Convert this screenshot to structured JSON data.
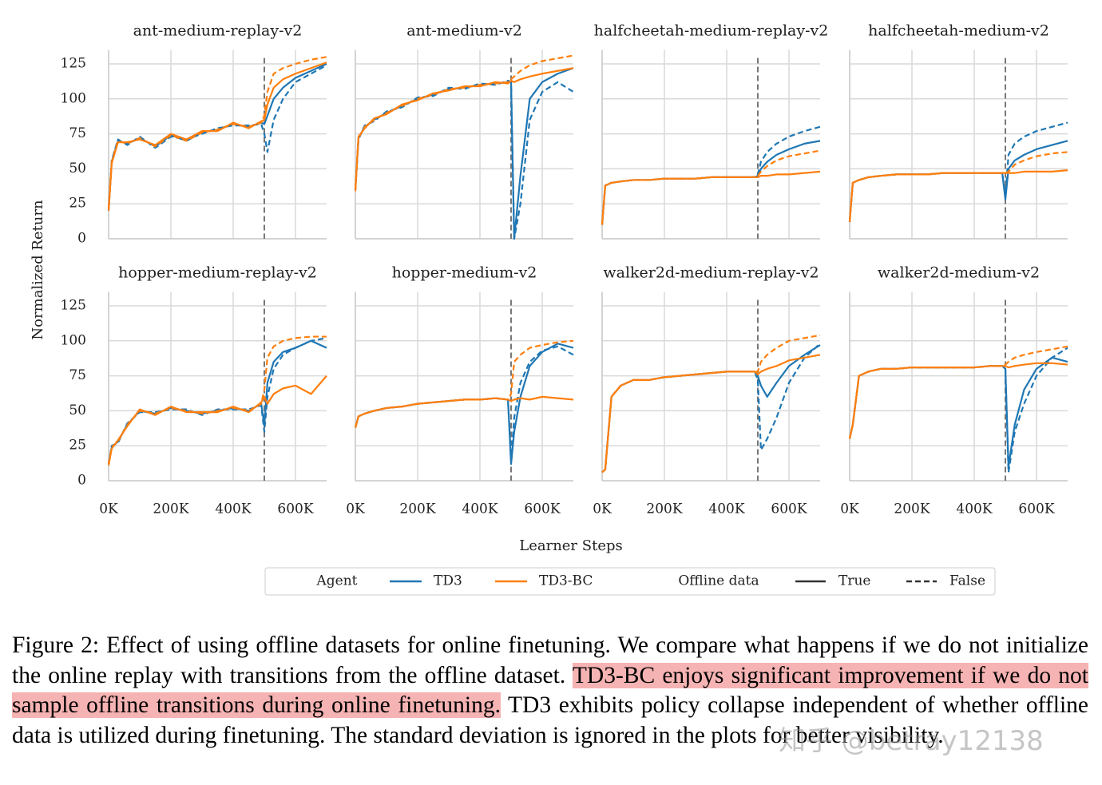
{
  "axes": {
    "xlim": [
      0,
      700000
    ],
    "xticks": [
      {
        "value": 0,
        "label": "0K"
      },
      {
        "value": 200000,
        "label": "200K"
      },
      {
        "value": 400000,
        "label": "400K"
      },
      {
        "value": 600000,
        "label": "600K"
      }
    ],
    "ylim": [
      0,
      135
    ],
    "yticks": [
      0,
      25,
      50,
      75,
      100,
      125
    ],
    "grid": true,
    "switch_step": 500000,
    "xlabel": "Learner Steps",
    "ylabel": "Normalized Return"
  },
  "legend": {
    "agent_title": "Agent",
    "agents": [
      {
        "name": "TD3",
        "color": "#1f77b4"
      },
      {
        "name": "TD3-BC",
        "color": "#ff7f0e"
      }
    ],
    "offline_title": "Offline data",
    "styles": [
      {
        "name": "True",
        "dash": "solid"
      },
      {
        "name": "False",
        "dash": "dashed"
      }
    ]
  },
  "chart_data": [
    {
      "type": "line",
      "title": "ant-medium-replay-v2",
      "x": [
        0,
        10000,
        30000,
        60000,
        100000,
        150000,
        200000,
        250000,
        300000,
        350000,
        400000,
        450000,
        490000,
        500000,
        510000,
        530000,
        560000,
        600000,
        650000,
        700000
      ],
      "series": [
        {
          "agent": "TD3",
          "offline_data": "True",
          "values": [
            20,
            55,
            70,
            68,
            72,
            66,
            74,
            70,
            76,
            78,
            82,
            80,
            83,
            82,
            88,
            100,
            108,
            115,
            120,
            125
          ]
        },
        {
          "agent": "TD3",
          "offline_data": "False",
          "values": [
            21,
            56,
            71,
            67,
            73,
            65,
            73,
            71,
            75,
            79,
            81,
            81,
            82,
            75,
            62,
            85,
            100,
            112,
            118,
            124
          ]
        },
        {
          "agent": "TD3-BC",
          "offline_data": "True",
          "values": [
            20,
            54,
            69,
            69,
            71,
            67,
            75,
            71,
            77,
            77,
            83,
            79,
            84,
            85,
            96,
            108,
            114,
            118,
            122,
            126
          ]
        },
        {
          "agent": "TD3-BC",
          "offline_data": "False",
          "values": [
            22,
            55,
            70,
            68,
            72,
            66,
            74,
            70,
            76,
            78,
            82,
            80,
            83,
            88,
            105,
            118,
            122,
            125,
            128,
            130
          ]
        }
      ]
    },
    {
      "type": "line",
      "title": "ant-medium-v2",
      "x": [
        0,
        10000,
        30000,
        60000,
        100000,
        150000,
        200000,
        250000,
        300000,
        350000,
        400000,
        450000,
        490000,
        500000,
        510000,
        530000,
        560000,
        600000,
        650000,
        700000
      ],
      "series": [
        {
          "agent": "TD3",
          "offline_data": "True",
          "values": [
            35,
            72,
            80,
            85,
            90,
            95,
            100,
            103,
            107,
            108,
            110,
            111,
            112,
            112,
            0,
            45,
            100,
            112,
            118,
            122
          ]
        },
        {
          "agent": "TD3",
          "offline_data": "False",
          "values": [
            35,
            71,
            81,
            84,
            91,
            94,
            101,
            102,
            108,
            107,
            111,
            110,
            113,
            112,
            0,
            25,
            85,
            105,
            112,
            105
          ]
        },
        {
          "agent": "TD3-BC",
          "offline_data": "True",
          "values": [
            34,
            73,
            79,
            86,
            89,
            96,
            99,
            104,
            106,
            109,
            109,
            112,
            111,
            113,
            112,
            114,
            116,
            118,
            120,
            122
          ]
        },
        {
          "agent": "TD3-BC",
          "offline_data": "False",
          "values": [
            36,
            72,
            80,
            85,
            90,
            95,
            100,
            103,
            107,
            108,
            110,
            111,
            112,
            114,
            116,
            120,
            124,
            127,
            129,
            131
          ]
        }
      ]
    },
    {
      "type": "line",
      "title": "halfcheetah-medium-replay-v2",
      "x": [
        0,
        10000,
        30000,
        60000,
        100000,
        150000,
        200000,
        250000,
        300000,
        350000,
        400000,
        450000,
        490000,
        500000,
        510000,
        530000,
        560000,
        600000,
        650000,
        700000
      ],
      "series": [
        {
          "agent": "TD3",
          "offline_data": "True",
          "values": [
            10,
            38,
            40,
            41,
            42,
            42,
            43,
            43,
            43,
            44,
            44,
            44,
            44,
            45,
            50,
            55,
            60,
            64,
            68,
            70
          ]
        },
        {
          "agent": "TD3",
          "offline_data": "False",
          "values": [
            10,
            38,
            40,
            41,
            42,
            42,
            43,
            43,
            43,
            44,
            44,
            44,
            44,
            46,
            55,
            62,
            68,
            73,
            77,
            80
          ]
        },
        {
          "agent": "TD3-BC",
          "offline_data": "True",
          "values": [
            10,
            38,
            40,
            41,
            42,
            42,
            43,
            43,
            43,
            44,
            44,
            44,
            44,
            44,
            45,
            45,
            46,
            46,
            47,
            48
          ]
        },
        {
          "agent": "TD3-BC",
          "offline_data": "False",
          "values": [
            10,
            38,
            40,
            41,
            42,
            42,
            43,
            43,
            43,
            44,
            44,
            44,
            44,
            45,
            48,
            52,
            56,
            59,
            61,
            63
          ]
        }
      ]
    },
    {
      "type": "line",
      "title": "halfcheetah-medium-v2",
      "x": [
        0,
        10000,
        30000,
        60000,
        100000,
        150000,
        200000,
        250000,
        300000,
        350000,
        400000,
        450000,
        490000,
        500000,
        510000,
        530000,
        560000,
        600000,
        650000,
        700000
      ],
      "series": [
        {
          "agent": "TD3",
          "offline_data": "True",
          "values": [
            12,
            40,
            42,
            44,
            45,
            46,
            46,
            46,
            47,
            47,
            47,
            47,
            47,
            28,
            50,
            56,
            60,
            64,
            67,
            70
          ]
        },
        {
          "agent": "TD3",
          "offline_data": "False",
          "values": [
            12,
            40,
            42,
            44,
            45,
            46,
            46,
            46,
            47,
            47,
            47,
            47,
            47,
            30,
            60,
            68,
            73,
            77,
            80,
            83
          ]
        },
        {
          "agent": "TD3-BC",
          "offline_data": "True",
          "values": [
            12,
            40,
            42,
            44,
            45,
            46,
            46,
            46,
            47,
            47,
            47,
            47,
            47,
            47,
            47,
            47,
            48,
            48,
            48,
            49
          ]
        },
        {
          "agent": "TD3-BC",
          "offline_data": "False",
          "values": [
            12,
            40,
            42,
            44,
            45,
            46,
            46,
            46,
            47,
            47,
            47,
            47,
            47,
            47,
            48,
            53,
            56,
            59,
            61,
            62
          ]
        }
      ]
    },
    {
      "type": "line",
      "title": "hopper-medium-replay-v2",
      "x": [
        0,
        10000,
        30000,
        60000,
        100000,
        150000,
        200000,
        250000,
        300000,
        350000,
        400000,
        450000,
        490000,
        500000,
        510000,
        530000,
        560000,
        600000,
        650000,
        700000
      ],
      "series": [
        {
          "agent": "TD3",
          "offline_data": "True",
          "values": [
            12,
            24,
            28,
            40,
            50,
            48,
            52,
            50,
            48,
            50,
            52,
            50,
            55,
            40,
            70,
            85,
            92,
            95,
            100,
            95
          ]
        },
        {
          "agent": "TD3",
          "offline_data": "False",
          "values": [
            12,
            25,
            27,
            41,
            49,
            49,
            51,
            51,
            47,
            51,
            51,
            51,
            54,
            35,
            60,
            80,
            90,
            95,
            100,
            102
          ]
        },
        {
          "agent": "TD3-BC",
          "offline_data": "True",
          "values": [
            11,
            23,
            29,
            39,
            51,
            47,
            53,
            49,
            49,
            49,
            53,
            49,
            56,
            60,
            55,
            62,
            66,
            68,
            62,
            75
          ]
        },
        {
          "agent": "TD3-BC",
          "offline_data": "False",
          "values": [
            12,
            24,
            28,
            40,
            50,
            48,
            52,
            50,
            48,
            50,
            52,
            50,
            55,
            65,
            88,
            96,
            100,
            102,
            103,
            103
          ]
        }
      ]
    },
    {
      "type": "line",
      "title": "hopper-medium-v2",
      "x": [
        0,
        10000,
        30000,
        60000,
        100000,
        150000,
        200000,
        250000,
        300000,
        350000,
        400000,
        450000,
        490000,
        500000,
        510000,
        530000,
        560000,
        600000,
        650000,
        700000
      ],
      "series": [
        {
          "agent": "TD3",
          "offline_data": "True",
          "values": [
            38,
            46,
            48,
            50,
            52,
            53,
            55,
            56,
            57,
            58,
            58,
            59,
            58,
            12,
            35,
            60,
            82,
            92,
            98,
            95
          ]
        },
        {
          "agent": "TD3",
          "offline_data": "False",
          "values": [
            38,
            46,
            48,
            50,
            52,
            53,
            55,
            56,
            57,
            58,
            58,
            59,
            58,
            15,
            45,
            70,
            85,
            93,
            96,
            90
          ]
        },
        {
          "agent": "TD3-BC",
          "offline_data": "True",
          "values": [
            38,
            46,
            48,
            50,
            52,
            53,
            55,
            56,
            57,
            58,
            58,
            59,
            58,
            57,
            58,
            59,
            58,
            60,
            59,
            58
          ]
        },
        {
          "agent": "TD3-BC",
          "offline_data": "False",
          "values": [
            38,
            46,
            48,
            50,
            52,
            53,
            55,
            56,
            57,
            58,
            58,
            59,
            58,
            62,
            85,
            90,
            95,
            97,
            99,
            100
          ]
        }
      ]
    },
    {
      "type": "line",
      "title": "walker2d-medium-replay-v2",
      "x": [
        0,
        10000,
        30000,
        60000,
        100000,
        150000,
        200000,
        250000,
        300000,
        350000,
        400000,
        450000,
        490000,
        500000,
        510000,
        530000,
        560000,
        600000,
        650000,
        700000
      ],
      "series": [
        {
          "agent": "TD3",
          "offline_data": "True",
          "values": [
            6,
            8,
            60,
            68,
            72,
            72,
            74,
            75,
            76,
            77,
            78,
            78,
            78,
            75,
            68,
            60,
            70,
            82,
            90,
            97
          ]
        },
        {
          "agent": "TD3",
          "offline_data": "False",
          "values": [
            6,
            8,
            60,
            68,
            72,
            72,
            74,
            75,
            76,
            77,
            78,
            78,
            78,
            72,
            22,
            30,
            45,
            70,
            88,
            98
          ]
        },
        {
          "agent": "TD3-BC",
          "offline_data": "True",
          "values": [
            6,
            8,
            60,
            68,
            72,
            72,
            74,
            75,
            76,
            77,
            78,
            78,
            78,
            76,
            78,
            80,
            82,
            86,
            88,
            90
          ]
        },
        {
          "agent": "TD3-BC",
          "offline_data": "False",
          "values": [
            6,
            8,
            60,
            68,
            72,
            72,
            74,
            75,
            76,
            77,
            78,
            78,
            78,
            78,
            85,
            90,
            95,
            100,
            102,
            104
          ]
        }
      ]
    },
    {
      "type": "line",
      "title": "walker2d-medium-v2",
      "x": [
        0,
        10000,
        30000,
        60000,
        100000,
        150000,
        200000,
        250000,
        300000,
        350000,
        400000,
        450000,
        490000,
        500000,
        510000,
        530000,
        560000,
        600000,
        650000,
        700000
      ],
      "series": [
        {
          "agent": "TD3",
          "offline_data": "True",
          "values": [
            30,
            40,
            75,
            78,
            80,
            80,
            81,
            81,
            81,
            81,
            81,
            82,
            82,
            80,
            10,
            40,
            65,
            80,
            88,
            85
          ]
        },
        {
          "agent": "TD3",
          "offline_data": "False",
          "values": [
            30,
            40,
            75,
            78,
            80,
            80,
            81,
            81,
            81,
            81,
            81,
            82,
            82,
            80,
            6,
            35,
            55,
            75,
            88,
            95
          ]
        },
        {
          "agent": "TD3-BC",
          "offline_data": "True",
          "values": [
            30,
            40,
            75,
            78,
            80,
            80,
            81,
            81,
            81,
            81,
            81,
            82,
            82,
            82,
            81,
            82,
            83,
            84,
            84,
            83
          ]
        },
        {
          "agent": "TD3-BC",
          "offline_data": "False",
          "values": [
            30,
            40,
            75,
            78,
            80,
            80,
            81,
            81,
            81,
            81,
            81,
            82,
            82,
            83,
            85,
            88,
            90,
            92,
            94,
            96
          ]
        }
      ]
    }
  ],
  "caption": {
    "before": "Figure 2: Effect of using offline datasets for online finetuning. We compare what happens if we do not initialize the online replay with transitions from the offline dataset. ",
    "highlight": "TD3-BC enjoys significant improvement if we do not sample offline transitions during online finetuning.",
    "after": " TD3 exhibits policy collapse independent of whether offline data is utilized during finetuning. The standard deviation is ignored in the plots for better visibility."
  },
  "watermark": "知乎 @betray12138"
}
